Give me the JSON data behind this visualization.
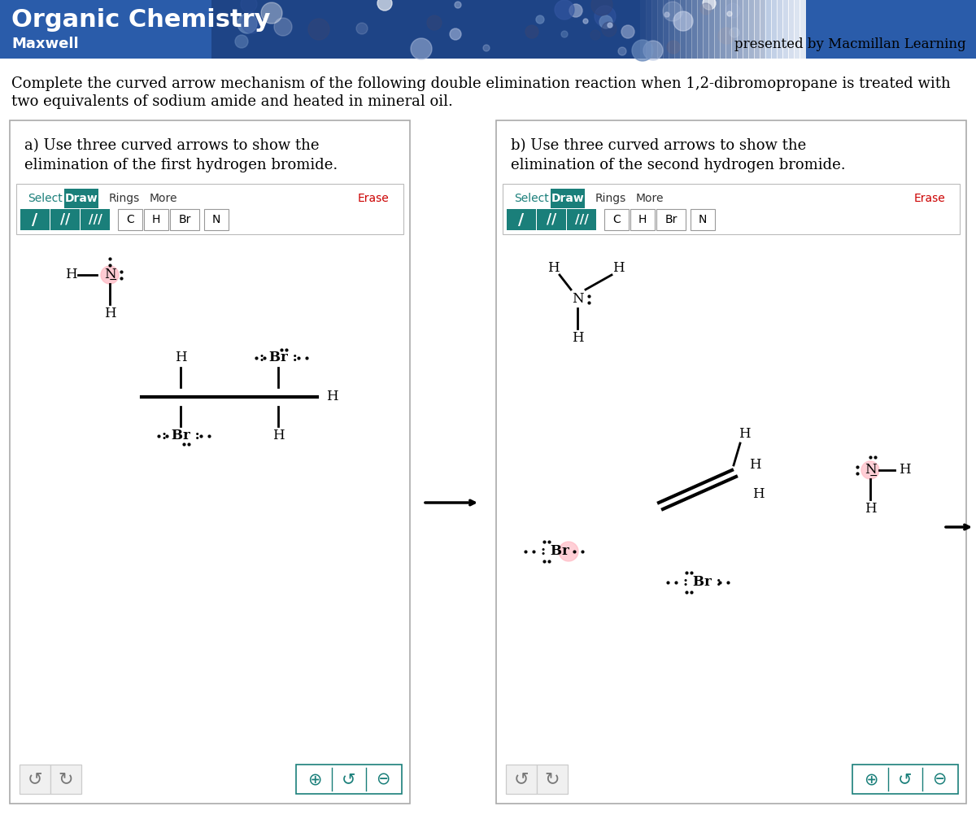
{
  "title": "Organic Chemistry",
  "subtitle": "Maxwell",
  "presented_by": "presented by Macmillan Learning",
  "header_bg": "#2a5caa",
  "body_bg": "#ffffff",
  "question_line1": "Complete the curved arrow mechanism of the following double elimination reaction when 1,2-dibromopropane is treated with",
  "question_line2": "two equivalents of sodium amide and heated in mineral oil.",
  "panel_a_title_line1": "a) Use three curved arrows to show the",
  "panel_a_title_line2": "elimination of the first hydrogen bromide.",
  "panel_b_title_line1": "b) Use three curved arrows to show the",
  "panel_b_title_line2": "elimination of the second hydrogen bromide.",
  "teal_color": "#1a7f7a",
  "erase_color": "#cc0000",
  "pink_highlight": "#ffb6c1",
  "panel_border": "#aaaaaa"
}
